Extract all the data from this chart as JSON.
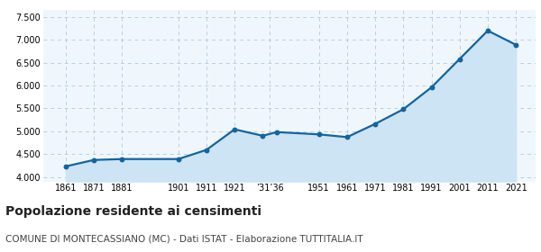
{
  "years": [
    1861,
    1871,
    1881,
    1901,
    1911,
    1921,
    1931,
    1936,
    1951,
    1961,
    1971,
    1981,
    1991,
    2001,
    2011,
    2021
  ],
  "population": [
    4230,
    4370,
    4390,
    4390,
    4590,
    5040,
    4900,
    4980,
    4930,
    4870,
    5160,
    5480,
    5960,
    6580,
    7200,
    6890
  ],
  "ytick_vals": [
    4000,
    4500,
    5000,
    5500,
    6000,
    6500,
    7000,
    7500
  ],
  "ylim": [
    3900,
    7650
  ],
  "xlim": [
    1853,
    2028
  ],
  "line_color": "#1464a0",
  "fill_color": "#cce4f4",
  "marker_color": "#1464a0",
  "bg_color": "#f0f7fc",
  "grid_color": "#b8cfe0",
  "title": "Popolazione residente ai censimenti",
  "subtitle": "COMUNE DI MONTECASSIANO (MC) - Dati ISTAT - Elaborazione TUTTITALIA.IT",
  "title_fontsize": 10,
  "subtitle_fontsize": 7.5,
  "x_tick_positions": [
    1861,
    1871,
    1881,
    1901,
    1911,
    1921,
    1933.5,
    1951,
    1961,
    1971,
    1981,
    1991,
    2001,
    2011,
    2021
  ],
  "x_tick_labels": [
    "1861",
    "1871",
    "1881",
    "1901",
    "1911",
    "1921",
    "’31’36",
    "1951",
    "1961",
    "1971",
    "1981",
    "1991",
    "2001",
    "2011",
    "2021"
  ]
}
